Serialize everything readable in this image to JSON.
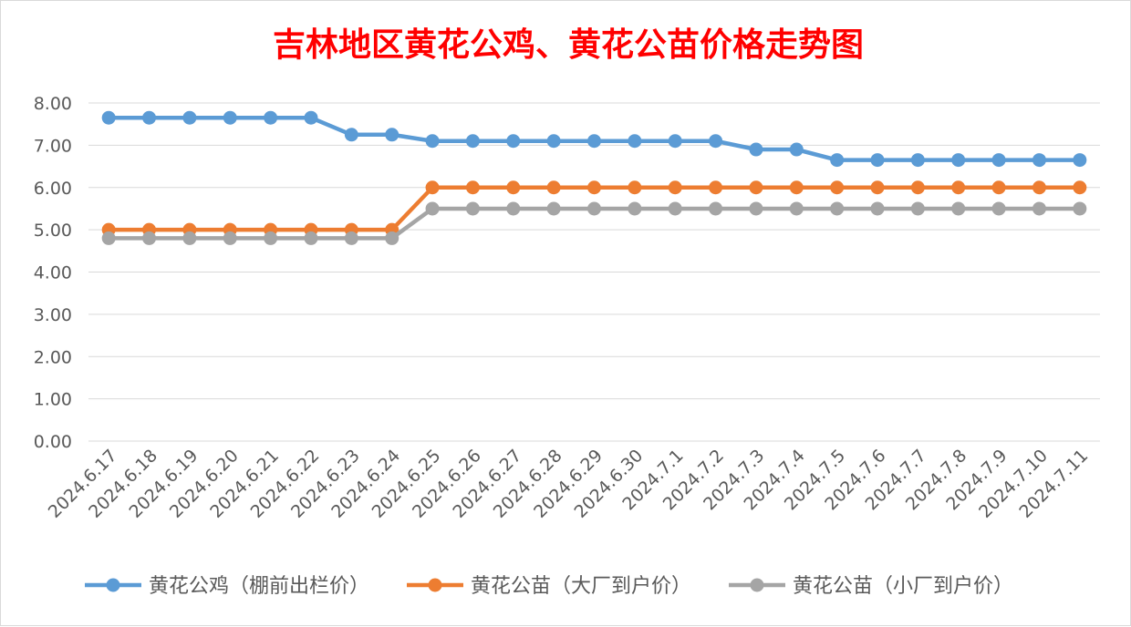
{
  "chart_data": {
    "type": "line",
    "title": "吉林地区黄花公鸡、黄花公苗价格走势图",
    "title_color": "#ff0000",
    "xlabel": "",
    "ylabel": "",
    "ylim": [
      0,
      8
    ],
    "yticks": [
      "0.00",
      "1.00",
      "2.00",
      "3.00",
      "4.00",
      "5.00",
      "6.00",
      "7.00",
      "8.00"
    ],
    "grid": true,
    "legend_position": "bottom",
    "categories": [
      "2024.6.17",
      "2024.6.18",
      "2024.6.19",
      "2024.6.20",
      "2024.6.21",
      "2024.6.22",
      "2024.6.23",
      "2024.6.24",
      "2024.6.25",
      "2024.6.26",
      "2024.6.27",
      "2024.6.28",
      "2024.6.29",
      "2024.6.30",
      "2024.7.1",
      "2024.7.2",
      "2024.7.3",
      "2024.7.4",
      "2024.7.5",
      "2024.7.6",
      "2024.7.7",
      "2024.7.8",
      "2024.7.9",
      "2024.7.10",
      "2024.7.11"
    ],
    "series": [
      {
        "name": "黄花公鸡（棚前出栏价）",
        "color": "#5b9bd5",
        "values": [
          7.65,
          7.65,
          7.65,
          7.65,
          7.65,
          7.65,
          7.25,
          7.25,
          7.1,
          7.1,
          7.1,
          7.1,
          7.1,
          7.1,
          7.1,
          7.1,
          6.9,
          6.9,
          6.65,
          6.65,
          6.65,
          6.65,
          6.65,
          6.65,
          6.65
        ]
      },
      {
        "name": "黄花公苗（大厂到户价）",
        "color": "#ed7d31",
        "values": [
          5.0,
          5.0,
          5.0,
          5.0,
          5.0,
          5.0,
          5.0,
          5.0,
          6.0,
          6.0,
          6.0,
          6.0,
          6.0,
          6.0,
          6.0,
          6.0,
          6.0,
          6.0,
          6.0,
          6.0,
          6.0,
          6.0,
          6.0,
          6.0,
          6.0
        ]
      },
      {
        "name": "黄花公苗（小厂到户价）",
        "color": "#a5a5a5",
        "values": [
          4.8,
          4.8,
          4.8,
          4.8,
          4.8,
          4.8,
          4.8,
          4.8,
          5.5,
          5.5,
          5.5,
          5.5,
          5.5,
          5.5,
          5.5,
          5.5,
          5.5,
          5.5,
          5.5,
          5.5,
          5.5,
          5.5,
          5.5,
          5.5,
          5.5
        ]
      }
    ]
  }
}
